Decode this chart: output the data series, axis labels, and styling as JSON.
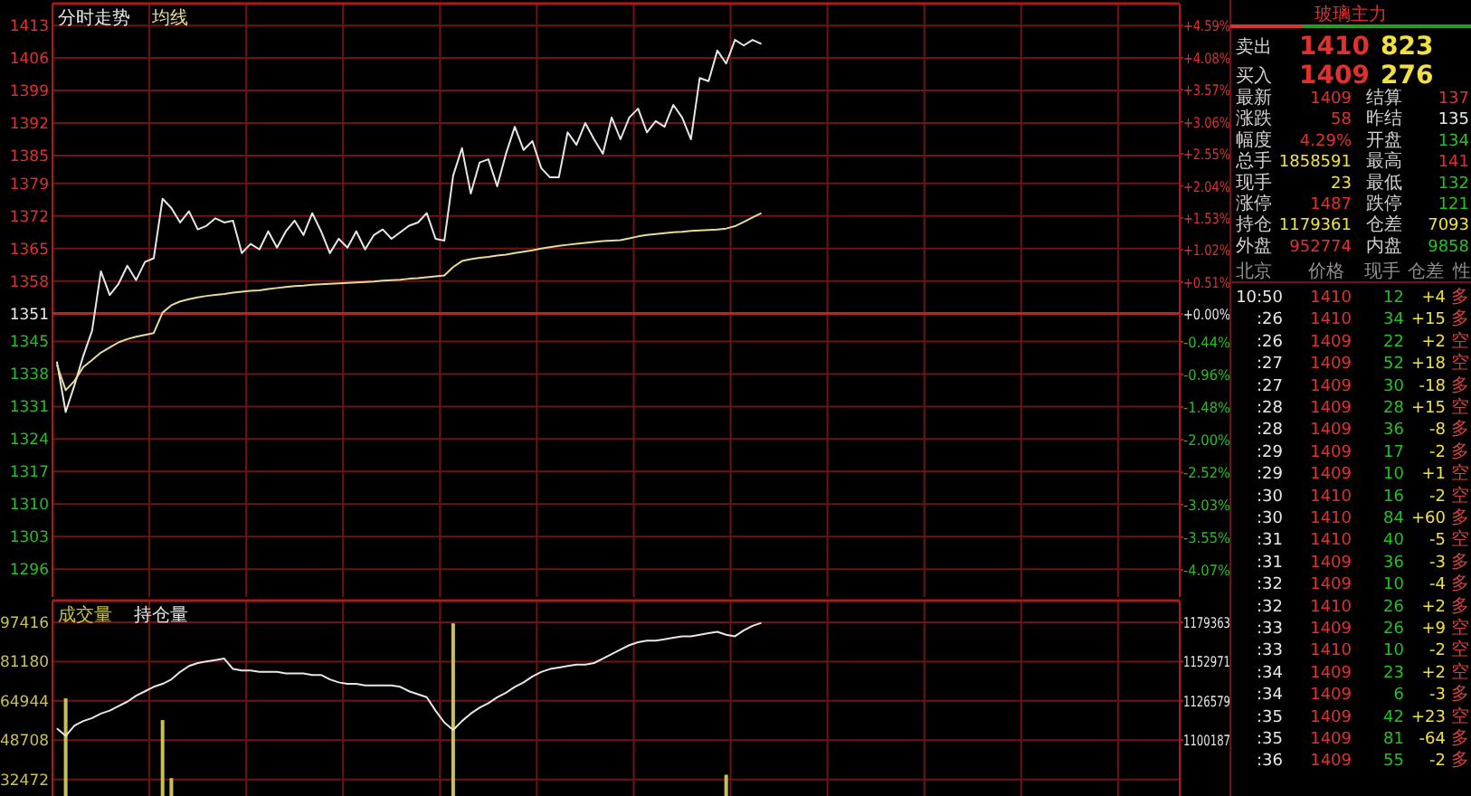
{
  "chart_data": [
    {
      "type": "line",
      "legend": "top left",
      "grid": true,
      "categories": [
        null,
        null,
        null,
        null,
        null,
        null,
        null,
        null,
        null,
        null,
        null,
        null,
        null,
        null,
        null,
        null,
        null,
        null,
        null,
        null,
        null,
        null,
        null,
        null,
        null,
        null,
        null,
        null,
        null,
        null,
        null,
        null,
        null,
        null,
        null,
        null,
        null,
        null,
        null,
        null,
        null,
        null,
        null,
        null,
        null,
        null,
        null,
        null,
        null,
        null,
        null,
        null,
        null,
        null,
        null,
        null,
        null,
        null,
        null,
        null,
        null,
        null,
        null,
        null,
        null,
        null,
        null,
        null,
        null,
        null,
        null,
        null,
        null,
        null,
        null,
        null,
        null,
        null,
        null,
        null,
        null,
        null,
        null,
        null,
        null,
        null,
        null,
        null,
        null,
        null,
        null,
        null,
        null,
        null,
        null,
        null,
        null,
        null,
        null,
        null,
        null,
        null,
        null,
        null,
        null,
        null,
        null,
        null,
        null,
        null,
        null,
        null,
        null,
        null,
        null,
        null,
        null,
        null,
        null,
        null,
        null,
        null,
        null,
        null,
        null,
        null,
        null,
        null
      ],
      "ylim": [
        1290,
        1417.7
      ],
      "yticks": [
        1413,
        1406,
        1399,
        1392,
        1385,
        1379,
        1372,
        1365,
        1358,
        1351,
        1345,
        1338,
        1331,
        1324,
        1317,
        1310,
        1303,
        1296
      ],
      "y2lim": [
        -4.5,
        4.94
      ],
      "y2ticks": [
        {
          "value": 4.59,
          "label": "+4.59%"
        },
        {
          "value": 4.08,
          "label": "+4.08%"
        },
        {
          "value": 3.57,
          "label": "+3.57%"
        },
        {
          "value": 3.06,
          "label": "+3.06%"
        },
        {
          "value": 2.55,
          "label": "+2.55%"
        },
        {
          "value": 2.04,
          "label": "+2.04%"
        },
        {
          "value": 1.53,
          "label": "+1.53%"
        },
        {
          "value": 1.02,
          "label": "+1.02%"
        },
        {
          "value": 0.51,
          "label": "+0.51%"
        },
        {
          "value": 0,
          "label": "+0.00%"
        },
        {
          "value": -0.44,
          "label": "-0.44%"
        },
        {
          "value": -0.96,
          "label": "-0.96%"
        },
        {
          "value": -1.48,
          "label": "-1.48%"
        },
        {
          "value": -2.0,
          "label": "-2.00%"
        },
        {
          "value": -2.52,
          "label": "-2.52%"
        },
        {
          "value": -3.03,
          "label": "-3.03%"
        },
        {
          "value": -3.55,
          "label": "-3.55%"
        },
        {
          "value": -4.07,
          "label": "-4.07%"
        }
      ],
      "ref_lines": [
        {
          "axis": "y",
          "value": 1351,
          "color": "#c81e1e"
        }
      ],
      "series": [
        {
          "name": "分时走势",
          "color": "#e6e6e6",
          "values": [
            1340.7,
            1329.8,
            1335.6,
            1341.9,
            1347.3,
            1360.1,
            1355,
            1357.4,
            1361.3,
            1358.2,
            1362.1,
            1362.9,
            1375.7,
            1373.7,
            1370.6,
            1373,
            1369.1,
            1369.9,
            1371.5,
            1370.6,
            1371,
            1364,
            1366,
            1364.8,
            1368.7,
            1365.2,
            1368.7,
            1371,
            1367.9,
            1372.6,
            1368.7,
            1364,
            1367.1,
            1365.2,
            1368.7,
            1364.8,
            1367.9,
            1369.1,
            1367.1,
            1368.5,
            1369.9,
            1370.6,
            1372.6,
            1367.1,
            1366.7,
            1380.7,
            1386.6,
            1376.8,
            1383.5,
            1384.2,
            1378.4,
            1385.4,
            1391.2,
            1386.2,
            1388.1,
            1382.3,
            1380.3,
            1380.3,
            1390,
            1387.3,
            1392,
            1388.5,
            1385.4,
            1393.2,
            1388.5,
            1393.2,
            1395.1,
            1390,
            1392.4,
            1391.2,
            1395.9,
            1393.2,
            1388.5,
            1401.7,
            1401,
            1407.6,
            1404.8,
            1409.9,
            1408.7,
            1409.9,
            1409,
            null,
            null,
            null,
            null,
            null,
            null,
            null,
            null,
            null,
            null,
            null,
            null,
            null,
            null,
            null,
            null,
            null,
            null,
            null,
            null,
            null,
            null,
            null,
            null,
            null,
            null,
            null,
            null,
            null,
            null,
            null,
            null,
            null,
            null,
            null,
            null,
            null,
            null,
            null,
            null,
            null,
            null,
            null,
            null,
            null,
            null,
            null
          ]
        },
        {
          "name": "均线",
          "color": "#e6dc96",
          "values": [
            1340,
            1334.5,
            1336.5,
            1339.5,
            1341,
            1342.6,
            1343.7,
            1344.8,
            1345.5,
            1346,
            1346.4,
            1346.8,
            1351.2,
            1352.8,
            1353.6,
            1354.1,
            1354.5,
            1354.8,
            1355,
            1355.2,
            1355.5,
            1355.7,
            1355.9,
            1356,
            1356.3,
            1356.5,
            1356.7,
            1356.9,
            1357,
            1357.2,
            1357.3,
            1357.4,
            1357.5,
            1357.6,
            1357.7,
            1357.8,
            1357.9,
            1358.1,
            1358.2,
            1358.3,
            1358.5,
            1358.6,
            1358.8,
            1359,
            1359.2,
            1361,
            1362.3,
            1362.7,
            1363,
            1363.2,
            1363.5,
            1363.7,
            1364,
            1364.3,
            1364.6,
            1365,
            1365.3,
            1365.6,
            1365.8,
            1366,
            1366.2,
            1366.4,
            1366.6,
            1366.7,
            1366.8,
            1367.2,
            1367.6,
            1367.9,
            1368.1,
            1368.3,
            1368.5,
            1368.6,
            1368.8,
            1368.9,
            1369,
            1369.1,
            1369.3,
            1369.8,
            1370.7,
            1371.7,
            1372.6,
            null,
            null,
            null,
            null,
            null,
            null,
            null,
            null,
            null,
            null,
            null,
            null,
            null,
            null,
            null,
            null,
            null,
            null,
            null,
            null,
            null,
            null,
            null,
            null,
            null,
            null,
            null,
            null,
            null,
            null,
            null,
            null,
            null,
            null,
            null,
            null,
            null,
            null,
            null,
            null,
            null,
            null,
            null,
            null,
            null,
            null,
            null
          ]
        }
      ]
    },
    {
      "type": "bar",
      "legend": "top left",
      "grid": true,
      "categories": [
        null,
        null,
        null,
        null,
        null,
        null,
        null,
        null,
        null,
        null,
        null,
        null,
        null,
        null,
        null,
        null,
        null,
        null,
        null,
        null,
        null,
        null,
        null,
        null,
        null,
        null,
        null,
        null,
        null,
        null,
        null,
        null,
        null,
        null,
        null,
        null,
        null,
        null,
        null,
        null,
        null,
        null,
        null,
        null,
        null,
        null,
        null,
        null,
        null,
        null,
        null,
        null,
        null,
        null,
        null,
        null,
        null,
        null,
        null,
        null,
        null,
        null,
        null,
        null,
        null,
        null,
        null,
        null,
        null,
        null,
        null,
        null,
        null,
        null,
        null,
        null,
        null,
        null,
        null,
        null,
        null,
        null,
        null,
        null,
        null,
        null,
        null,
        null,
        null,
        null,
        null,
        null,
        null,
        null,
        null,
        null,
        null,
        null,
        null,
        null,
        null,
        null,
        null,
        null,
        null,
        null,
        null,
        null,
        null,
        null,
        null,
        null,
        null,
        null,
        null,
        null,
        null,
        null,
        null,
        null,
        null,
        null,
        null,
        null,
        null,
        null,
        null,
        null
      ],
      "ylim": [
        25600,
        106400
      ],
      "yticks": [
        32472,
        48708,
        64944,
        81180,
        97416
      ],
      "y2lim": [
        1062600,
        1193960
      ],
      "y2ticks": [
        1100187,
        1126579,
        1152971,
        1179363
      ],
      "series": [
        {
          "name": "成交量",
          "color": "#c8c050",
          "values": [
            null,
            66000,
            null,
            null,
            null,
            null,
            null,
            null,
            null,
            null,
            null,
            null,
            57000,
            33000,
            null,
            null,
            null,
            null,
            null,
            null,
            null,
            null,
            null,
            null,
            null,
            null,
            null,
            null,
            null,
            null,
            null,
            null,
            null,
            null,
            null,
            null,
            null,
            null,
            null,
            null,
            null,
            null,
            null,
            null,
            null,
            97000,
            null,
            null,
            null,
            null,
            null,
            null,
            null,
            null,
            null,
            null,
            null,
            null,
            null,
            null,
            null,
            null,
            null,
            null,
            null,
            null,
            null,
            null,
            null,
            null,
            null,
            null,
            null,
            null,
            null,
            null,
            34400,
            null,
            null,
            null,
            null,
            null,
            null,
            null,
            null,
            null,
            null,
            null,
            null,
            null,
            null,
            null,
            null,
            null,
            null,
            null,
            null,
            null,
            null,
            null,
            null,
            null,
            null,
            null,
            null,
            null,
            null,
            null,
            null,
            null,
            null,
            null,
            null,
            null,
            null,
            null,
            null,
            null,
            null,
            null,
            null,
            null,
            null,
            null,
            null,
            null,
            null,
            null
          ]
        },
        {
          "name": "持仓量",
          "type": "line",
          "axis": "y2",
          "color": "#e6e6e6",
          "values": [
            1108000,
            1103000,
            1110000,
            1113000,
            1115000,
            1118000,
            1120000,
            1123000,
            1126000,
            1130000,
            1133000,
            1136000,
            1138000,
            1141000,
            1146000,
            1150000,
            1152000,
            1153000,
            1154000,
            1155000,
            1148000,
            1147000,
            1147000,
            1146000,
            1146000,
            1146000,
            1145000,
            1145000,
            1145000,
            1144000,
            1144000,
            1141000,
            1139000,
            1138000,
            1138000,
            1137000,
            1137000,
            1137000,
            1137000,
            1136000,
            1133000,
            1131000,
            1129000,
            1120000,
            1112000,
            1107000,
            1113000,
            1118000,
            1122000,
            1125000,
            1129000,
            1132000,
            1136000,
            1139000,
            1143000,
            1146000,
            1148000,
            1149000,
            1150000,
            1151000,
            1151000,
            1152000,
            1155000,
            1158000,
            1161000,
            1164000,
            1166000,
            1167000,
            1167000,
            1168000,
            1169000,
            1170000,
            1170000,
            1171000,
            1172000,
            1173000,
            1171000,
            1170000,
            1174000,
            1177000,
            1179000,
            null,
            null,
            null,
            null,
            null,
            null,
            null,
            null,
            null,
            null,
            null,
            null,
            null,
            null,
            null,
            null,
            null,
            null,
            null,
            null,
            null,
            null,
            null,
            null,
            null,
            null,
            null,
            null,
            null,
            null,
            null,
            null,
            null,
            null,
            null,
            null,
            null,
            null,
            null,
            null,
            null,
            null,
            null,
            null,
            null,
            null,
            null
          ]
        }
      ]
    },
    {
      "type": "other",
      "title": "玻璃主力",
      "annotations": [
        "卖出",
        "1410",
        "823",
        "买入",
        "1409",
        "276",
        "最新",
        "1409",
        "结算",
        "137",
        "涨跌",
        "58",
        "昨结",
        "135",
        "幅度",
        "4.29%",
        "开盘",
        "134",
        "总手",
        "1858591",
        "最高",
        "141",
        "现手",
        "23",
        "最低",
        "132",
        "涨停",
        "1487",
        "跌停",
        "121",
        "持仓",
        "1179361",
        "仓差",
        "7093",
        "外盘",
        "952774",
        "内盘",
        "9858",
        "北京",
        "价格",
        "现手",
        "仓差",
        "性",
        "10:50",
        "1410",
        "12",
        "+4",
        "多",
        ":26",
        "1410",
        "34",
        "+15",
        "多",
        ":26",
        "1409",
        "22",
        "+2",
        "空",
        ":27",
        "1409",
        "52",
        "+18",
        "空",
        ":27",
        "1409",
        "30",
        "-18",
        "多",
        ":28",
        "1409",
        "28",
        "+15",
        "空",
        ":28",
        "1409",
        "36",
        "-8",
        "多",
        ":29",
        "1409",
        "17",
        "-2",
        "多",
        ":29",
        "1409",
        "10",
        "+1",
        "空",
        ":30",
        "1410",
        "16",
        "-2",
        "空",
        ":30",
        "1410",
        "84",
        "+60",
        "多",
        ":31",
        "1410",
        "40",
        "-5",
        "空",
        ":31",
        "1409",
        "36",
        "-3",
        "多",
        ":32",
        "1409",
        "10",
        "-4",
        "多",
        ":32",
        "1410",
        "26",
        "+2",
        "多",
        ":33",
        "1409",
        "26",
        "+9",
        "空",
        ":33",
        "1410",
        "10",
        "-2",
        "空",
        ":34",
        "1409",
        "23",
        "+2",
        "空",
        ":34",
        "1409",
        "6",
        "-3",
        "多",
        ":35",
        "1409",
        "42",
        "+23",
        "空",
        ":35",
        "1409",
        "81",
        "-64",
        "多",
        ":36",
        "1409",
        "55",
        "-2",
        "多"
      ]
    }
  ]
}
